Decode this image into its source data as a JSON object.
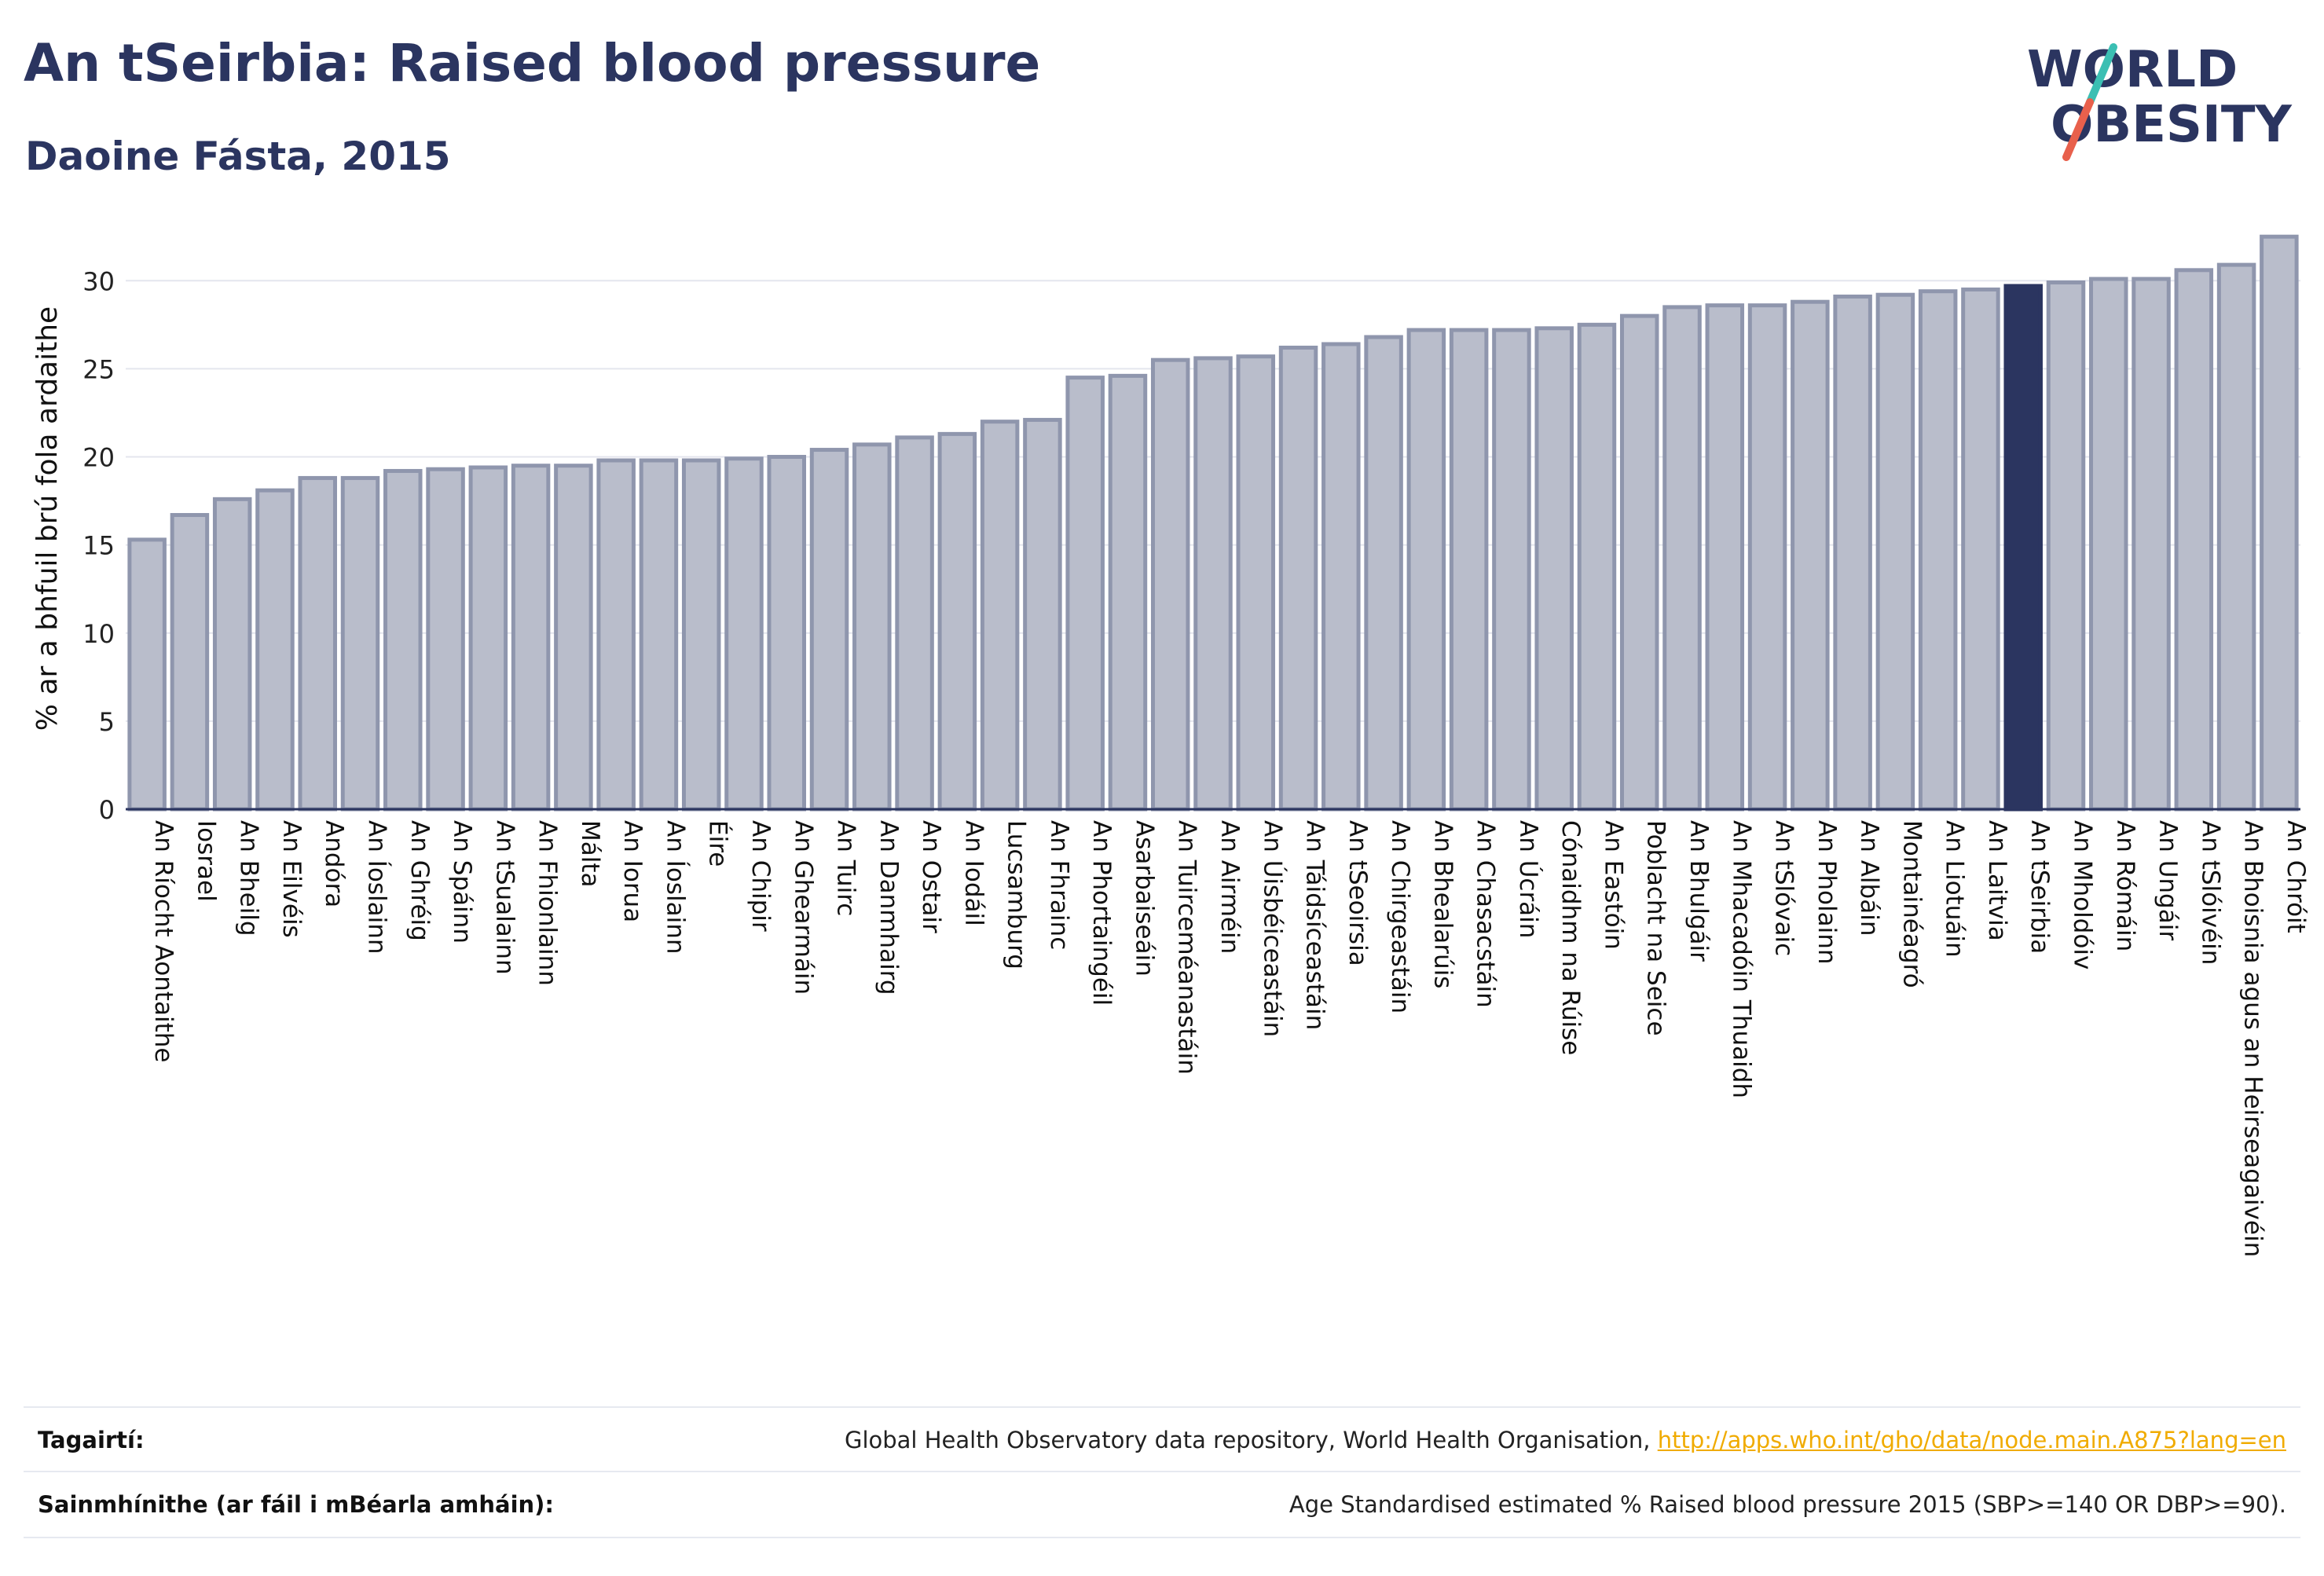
{
  "header": {
    "title": "An tSeirbia: Raised blood pressure",
    "subtitle": "Daoine Fásta, 2015"
  },
  "logo": {
    "line1": "WORLD",
    "line2": "OBESITY",
    "colors": {
      "text": "#2b3560",
      "slash_red": "#e8604c",
      "slash_teal": "#3bbfb3"
    }
  },
  "chart_data": {
    "type": "bar",
    "ylabel": "% ar a bhfuil brú fola ardaithe",
    "xlabel": "",
    "ylim": [
      0,
      33
    ],
    "yticks": [
      0,
      5,
      10,
      15,
      20,
      25,
      30
    ],
    "grid": true,
    "highlight": "An tSeirbia",
    "colors": {
      "bar": "#b9bdcb",
      "bar_edge": "#8f96ad",
      "highlight": "#2b3560",
      "grid": "#e4e6ee",
      "axis": "#2b3560"
    },
    "categories": [
      "An Ríocht Aontaithe",
      "Iosrael",
      "An Bheilg",
      "An Eilvéis",
      "Andóra",
      "An Íoslainn",
      "An Ghréig",
      "An Spáinn",
      "An tSualainn",
      "An Fhionlainn",
      "Málta",
      "An Iorua",
      "An Íoslainn",
      "Éire",
      "An Chipir",
      "An Ghearmáin",
      "An Tuirc",
      "An Danmhairg",
      "An Ostair",
      "An Iodáil",
      "Lucsamburg",
      "An Fhrainc",
      "An Phortaingéil",
      "Asarbaiseáin",
      "An Tuirceméanastáin",
      "An Airméin",
      "An Úisbéiceastáin",
      "An Táidsíceastáin",
      "An tSeoirsia",
      "An Chirgeastáin",
      "An Bhealarúis",
      "An Chasacstáin",
      "An Úcráin",
      "Cónaidhm na Rúise",
      "An Eastóin",
      "Poblacht na Seice",
      "An Bhulgáir",
      "An Mhacadóin Thuaidh",
      "An tSlóvaic",
      "An Pholainn",
      "An Albáin",
      "Montainéagró",
      "An Liotuáin",
      "An Laitvia",
      "An tSeirbia",
      "An Mholdóiv",
      "An Rómáin",
      "An Ungáir",
      "An tSlóivéin",
      "An Bhoisnia agus an Heirseagaivéin",
      "An Chróit"
    ],
    "values": [
      15.3,
      16.7,
      17.6,
      18.1,
      18.8,
      18.8,
      19.2,
      19.3,
      19.4,
      19.5,
      19.5,
      19.8,
      19.8,
      19.8,
      19.9,
      20.0,
      20.4,
      20.7,
      21.1,
      21.3,
      22.0,
      22.1,
      24.5,
      24.6,
      25.5,
      25.6,
      25.7,
      26.2,
      26.4,
      26.8,
      27.2,
      27.2,
      27.2,
      27.3,
      27.5,
      28.0,
      28.5,
      28.6,
      28.6,
      28.8,
      29.1,
      29.2,
      29.4,
      29.5,
      29.7,
      29.9,
      30.1,
      30.1,
      30.6,
      30.9,
      32.5
    ]
  },
  "footer": {
    "references_label": "Tagairtí:",
    "references_text": "Global Health Observatory data repository, World Health Organisation, ",
    "references_link": "http://apps.who.int/gho/data/node.main.A875?lang=en",
    "definitions_label": "Sainmhínithe (ar fáil i mBéarla amháin):",
    "definitions_text": "Age Standardised estimated % Raised blood pressure 2015 (SBP>=140 OR DBP>=90)."
  }
}
